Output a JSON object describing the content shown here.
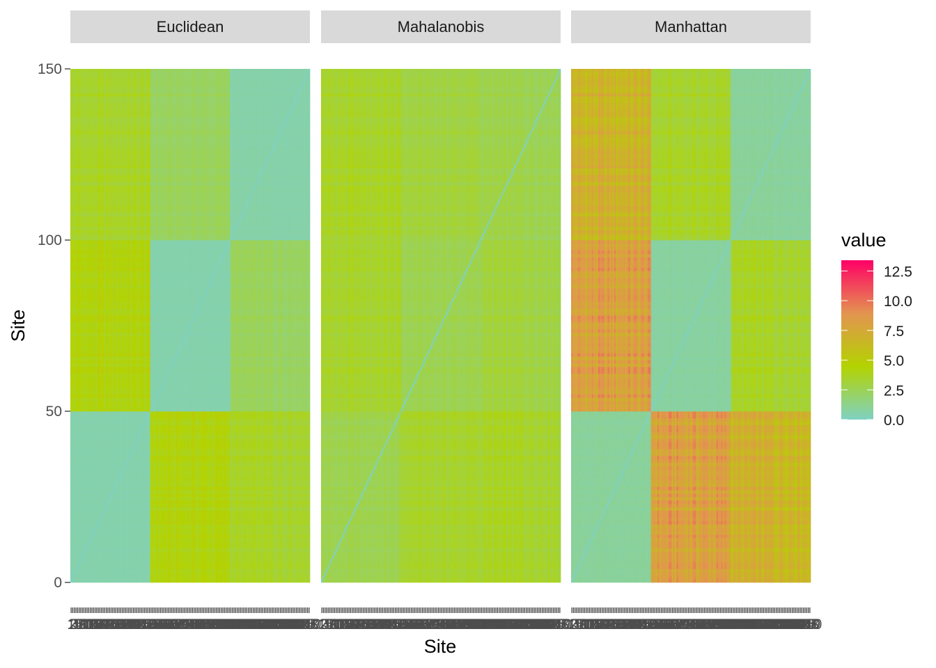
{
  "chart_data": {
    "type": "heatmap",
    "xlabel": "Site",
    "ylabel": "Site",
    "facets": [
      "Euclidean",
      "Mahalanobis",
      "Manhattan"
    ],
    "x_range": [
      1,
      150
    ],
    "y_range": [
      0,
      150
    ],
    "y_ticks": [
      0,
      50,
      100,
      150
    ],
    "grid": false,
    "legend": {
      "title": "value",
      "placement": "right",
      "range": [
        0,
        13.4
      ],
      "ticks": [
        0.0,
        2.5,
        5.0,
        7.5,
        10.0,
        12.5
      ],
      "tick_labels": [
        "0.0",
        "2.5",
        "5.0",
        "7.5",
        "10.0",
        "12.5"
      ],
      "colors": [
        "#7fd1c3",
        "#b3d300",
        "#e39450",
        "#ff0066"
      ]
    },
    "block_summary": {
      "blocks": [
        [
          1,
          50
        ],
        [
          51,
          100
        ],
        [
          101,
          150
        ]
      ],
      "Euclidean": [
        [
          0.5,
          4.2,
          3.5
        ],
        [
          4.2,
          0.5,
          2.3
        ],
        [
          3.5,
          2.3,
          0.6
        ]
      ],
      "Mahalanobis": [
        [
          2.6,
          3.4,
          3.5
        ],
        [
          3.4,
          2.6,
          3.0
        ],
        [
          3.5,
          3.0,
          2.7
        ]
      ],
      "Manhattan": [
        [
          0.9,
          8.0,
          6.7
        ],
        [
          8.0,
          0.8,
          3.5
        ],
        [
          6.7,
          3.5,
          0.9
        ]
      ]
    }
  }
}
